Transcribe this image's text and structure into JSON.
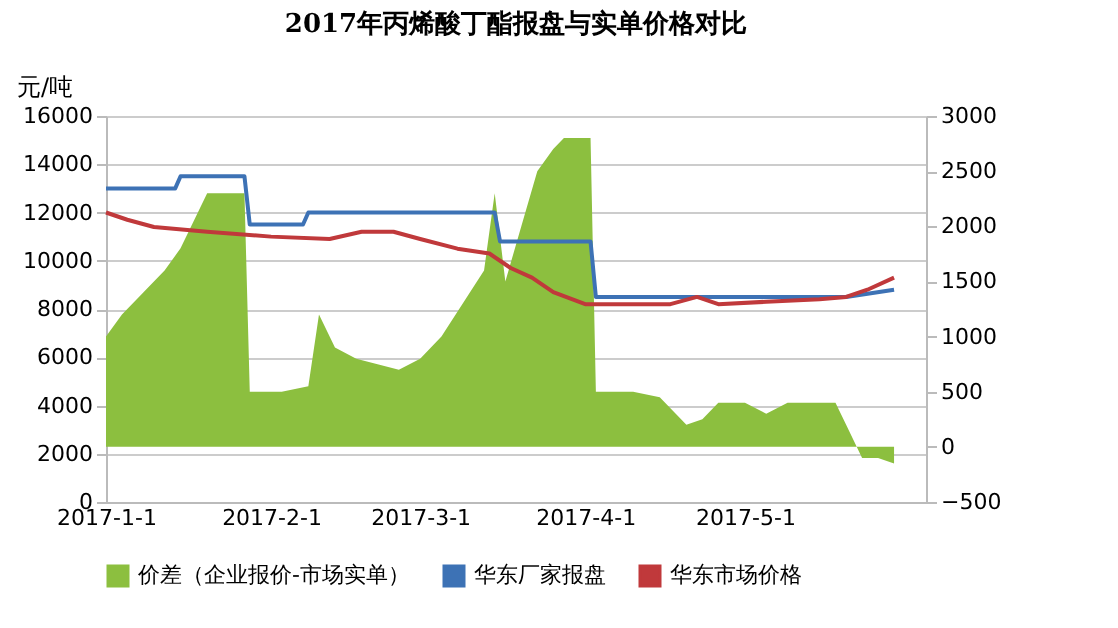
{
  "chart_data": {
    "type": "line",
    "title": "2017年丙烯酸丁酯报盘与实单价格对比",
    "ylabel": "元/吨",
    "xlim": [
      "2017-01-01",
      "2017-06-04"
    ],
    "xticks": [
      {
        "value": "2017-01-01",
        "label": "2017-1-1"
      },
      {
        "value": "2017-02-01",
        "label": "2017-2-1"
      },
      {
        "value": "2017-03-01",
        "label": "2017-3-1"
      },
      {
        "value": "2017-04-01",
        "label": "2017-4-1"
      },
      {
        "value": "2017-05-01",
        "label": "2017-5-1"
      }
    ],
    "ylim": [
      0,
      16000
    ],
    "yticks": [
      0,
      2000,
      4000,
      6000,
      8000,
      10000,
      12000,
      14000,
      16000
    ],
    "y2lim": [
      -500,
      3000
    ],
    "y2ticks": [
      -500,
      0,
      500,
      1000,
      1500,
      2000,
      2500,
      3000
    ],
    "grid": "y",
    "legend": "bottom",
    "series": [
      {
        "name": "价差（企业报价-市场实单）",
        "type": "area",
        "axis": "y2",
        "color": "#8cbf3f",
        "x": [
          "2017-01-01",
          "2017-01-04",
          "2017-01-08",
          "2017-01-12",
          "2017-01-15",
          "2017-01-18",
          "2017-01-20",
          "2017-01-24",
          "2017-01-27",
          "2017-01-28",
          "2017-02-03",
          "2017-02-08",
          "2017-02-10",
          "2017-02-13",
          "2017-02-17",
          "2017-02-21",
          "2017-02-25",
          "2017-03-01",
          "2017-03-05",
          "2017-03-09",
          "2017-03-13",
          "2017-03-15",
          "2017-03-17",
          "2017-03-20",
          "2017-03-23",
          "2017-03-26",
          "2017-03-28",
          "2017-04-02",
          "2017-04-03",
          "2017-04-10",
          "2017-04-15",
          "2017-04-18",
          "2017-04-20",
          "2017-04-23",
          "2017-04-26",
          "2017-05-01",
          "2017-05-05",
          "2017-05-09",
          "2017-05-13",
          "2017-05-18",
          "2017-05-20",
          "2017-05-23",
          "2017-05-26",
          "2017-05-29"
        ],
        "values": [
          1000,
          1200,
          1400,
          1600,
          1800,
          2100,
          2300,
          2300,
          2300,
          500,
          500,
          550,
          1200,
          900,
          800,
          750,
          700,
          800,
          1000,
          1300,
          1600,
          2300,
          1500,
          2000,
          2500,
          2700,
          2800,
          2800,
          500,
          500,
          450,
          300,
          200,
          250,
          400,
          400,
          300,
          400,
          400,
          400,
          200,
          -100,
          -100,
          -150
        ]
      },
      {
        "name": "华东厂家报盘",
        "color": "#3d72b5",
        "x": [
          "2017-01-01",
          "2017-01-14",
          "2017-01-15",
          "2017-01-27",
          "2017-01-28",
          "2017-02-07",
          "2017-02-08",
          "2017-03-15",
          "2017-03-16",
          "2017-04-02",
          "2017-04-03",
          "2017-05-20",
          "2017-05-29"
        ],
        "values": [
          13000,
          13000,
          13500,
          13500,
          11500,
          11500,
          12000,
          12000,
          10800,
          10800,
          8500,
          8500,
          8800
        ]
      },
      {
        "name": "华东市场价格",
        "color": "#c0393b",
        "x": [
          "2017-01-01",
          "2017-01-05",
          "2017-01-10",
          "2017-01-20",
          "2017-02-01",
          "2017-02-12",
          "2017-02-18",
          "2017-02-24",
          "2017-03-01",
          "2017-03-08",
          "2017-03-14",
          "2017-03-18",
          "2017-03-22",
          "2017-03-26",
          "2017-04-01",
          "2017-04-10",
          "2017-04-17",
          "2017-04-22",
          "2017-04-26",
          "2017-05-05",
          "2017-05-15",
          "2017-05-20",
          "2017-05-24",
          "2017-05-29"
        ],
        "values": [
          12000,
          11700,
          11400,
          11200,
          11000,
          10900,
          11200,
          11200,
          10900,
          10500,
          10300,
          9700,
          9300,
          8700,
          8200,
          8200,
          8200,
          8500,
          8200,
          8300,
          8400,
          8500,
          8800,
          9300
        ]
      }
    ]
  }
}
